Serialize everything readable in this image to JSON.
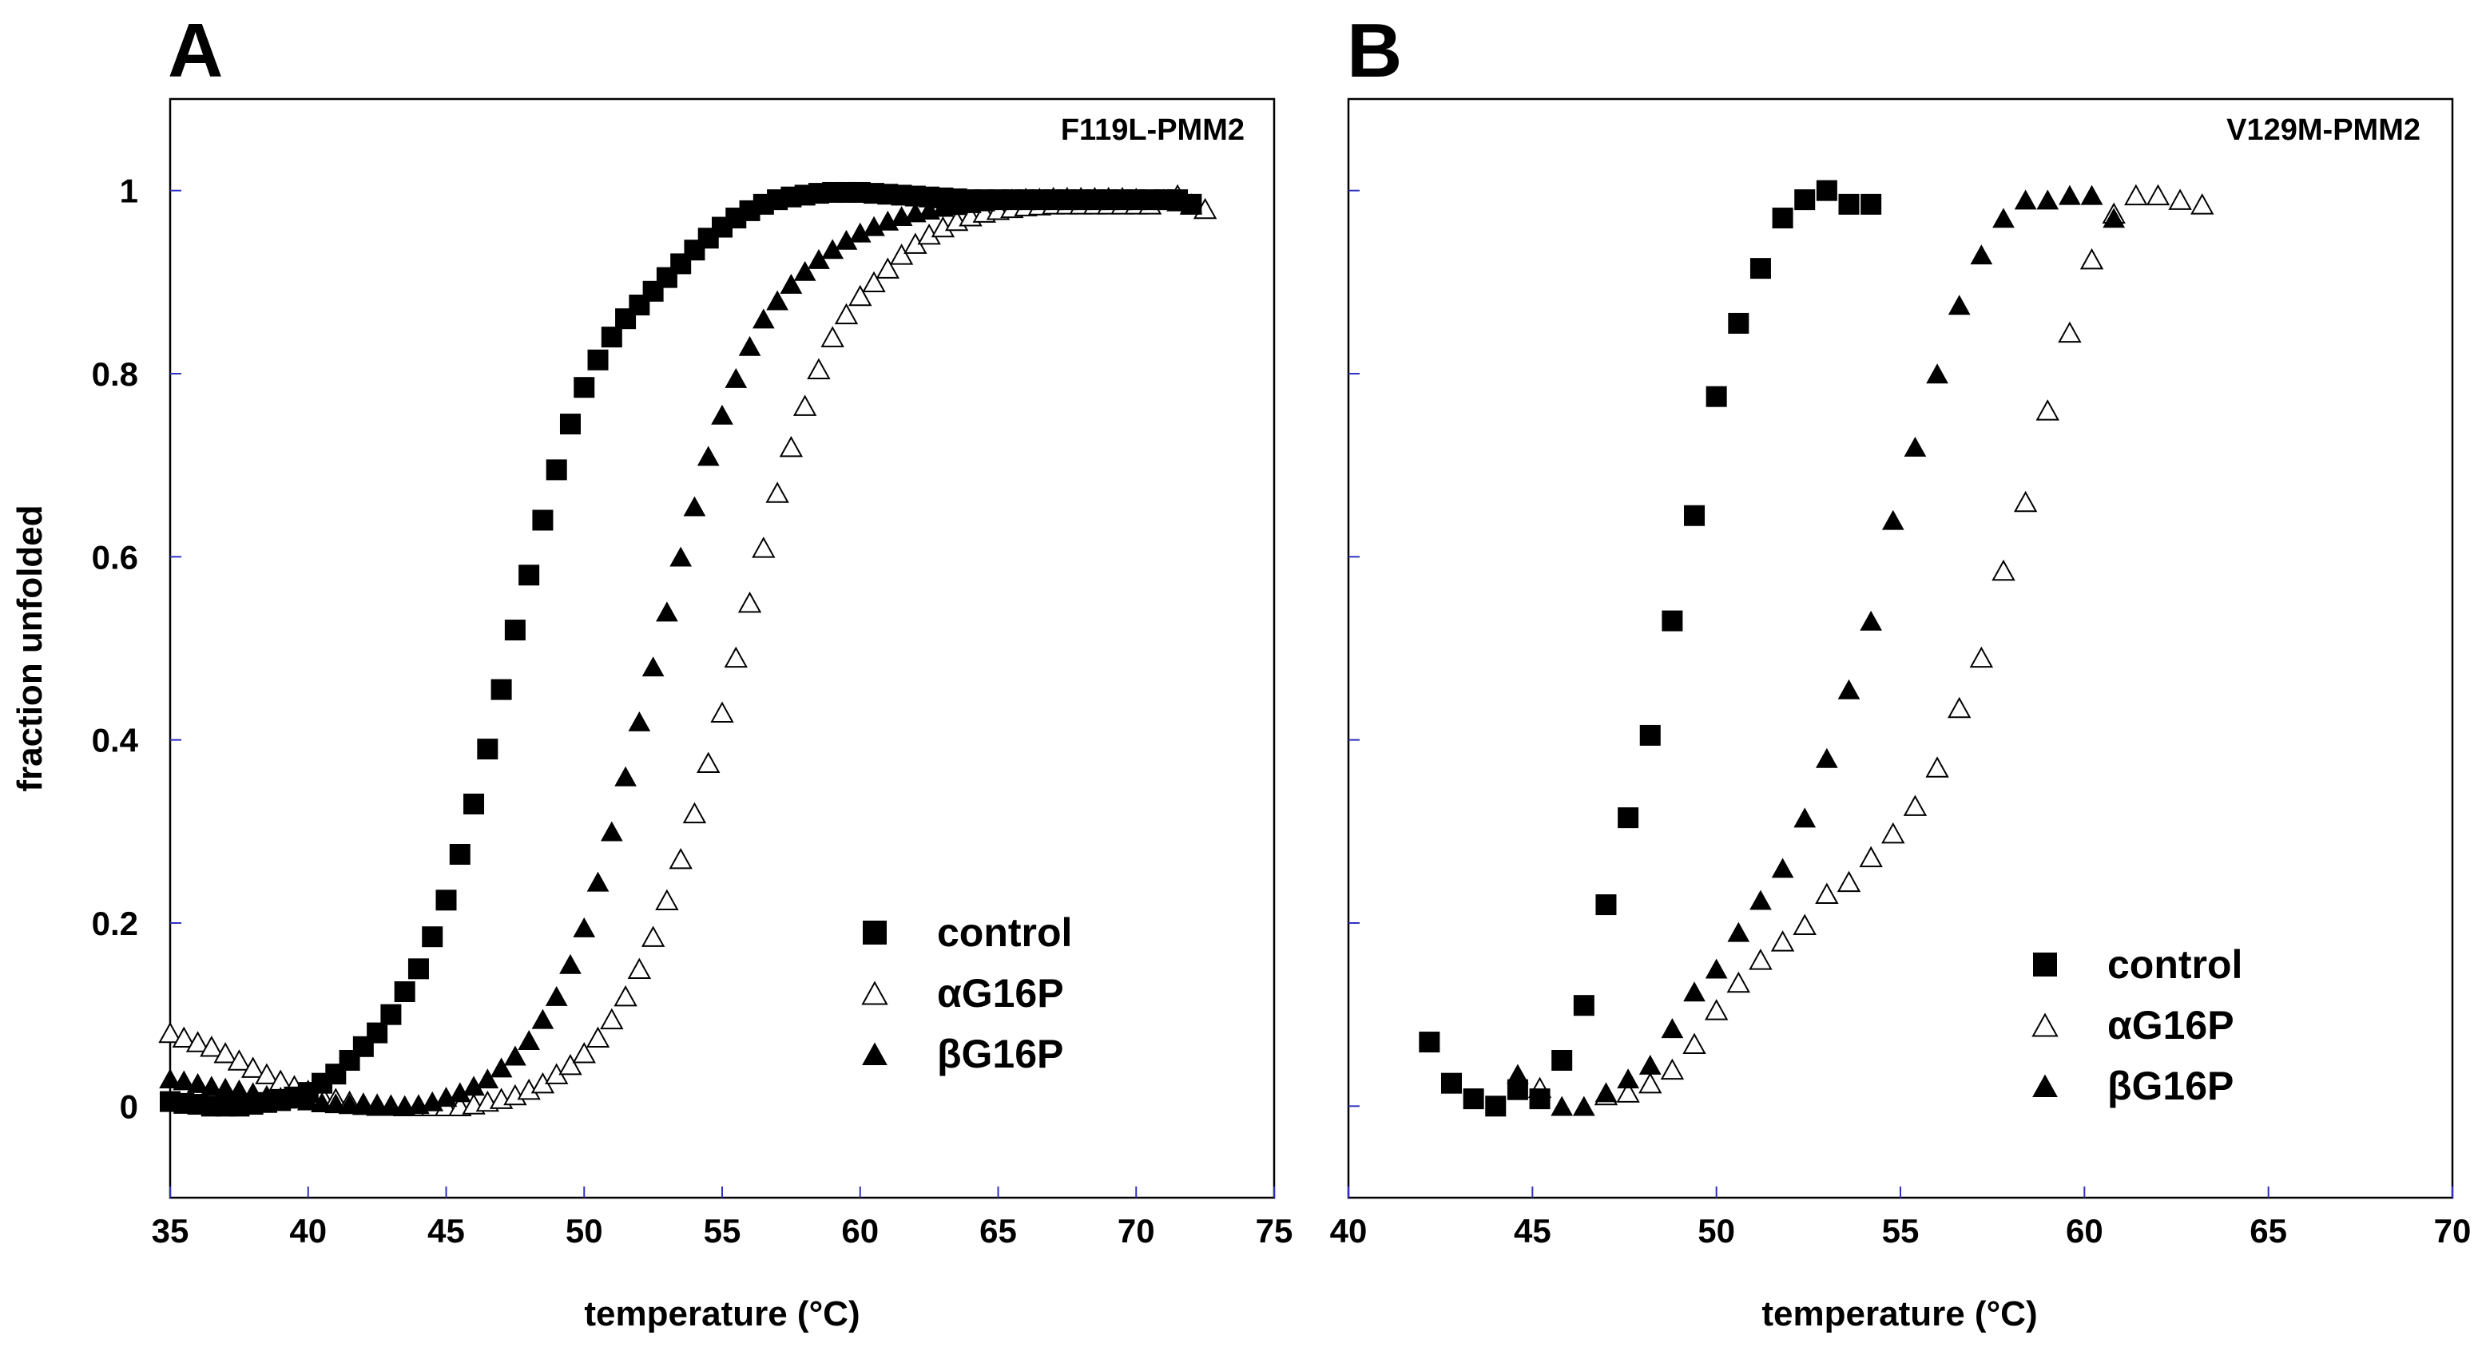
{
  "chart_data": [
    {
      "type": "scatter",
      "panel": "A",
      "title": "F119L-PMM2",
      "xlabel": "temperature (°C)",
      "ylabel": "fraction unfolded",
      "xlim": [
        35,
        75
      ],
      "ylim": [
        -0.1,
        1.1
      ],
      "xticks": [
        35,
        40,
        45,
        50,
        55,
        60,
        65,
        70,
        75
      ],
      "yticks": [
        0,
        0.2,
        0.4,
        0.6,
        0.8,
        1
      ],
      "ytick_labels": [
        "0",
        "0.2",
        "0.4",
        "0.6",
        "0.8",
        "1"
      ],
      "legend_position": "bottom-right",
      "grid": false,
      "series": [
        {
          "name": "control",
          "marker": "square-filled",
          "x": [
            35.0,
            35.5,
            36.0,
            36.5,
            37.0,
            37.5,
            38.0,
            38.5,
            39.0,
            39.5,
            40.0,
            40.5,
            41.0,
            41.5,
            42.0,
            42.5,
            43.0,
            43.5,
            44.0,
            44.5,
            45.0,
            45.5,
            46.0,
            46.5,
            47.0,
            47.5,
            48.0,
            48.5,
            49.0,
            49.5,
            50.0,
            50.5,
            51.0,
            51.5,
            52.0,
            52.5,
            53.0,
            53.5,
            54.0,
            54.5,
            55.0,
            55.5,
            56.0,
            56.5,
            57.0,
            57.5,
            58.0,
            58.5,
            59.0,
            59.5,
            60.0,
            60.5,
            61.0,
            61.5,
            62.0,
            62.5,
            63.0,
            63.5,
            64.0,
            64.5,
            65.0,
            65.5,
            66.0,
            66.5,
            67.0,
            67.5,
            68.0,
            68.5,
            69.0,
            69.5,
            70.0,
            70.5,
            71.0,
            71.5,
            72.0
          ],
          "y": [
            0.005,
            0.003,
            0.002,
            0.0,
            0.0,
            0.0,
            0.002,
            0.004,
            0.006,
            0.01,
            0.015,
            0.025,
            0.035,
            0.05,
            0.065,
            0.08,
            0.1,
            0.125,
            0.15,
            0.185,
            0.225,
            0.275,
            0.33,
            0.39,
            0.455,
            0.52,
            0.58,
            0.64,
            0.695,
            0.745,
            0.785,
            0.815,
            0.84,
            0.86,
            0.875,
            0.89,
            0.905,
            0.92,
            0.935,
            0.948,
            0.96,
            0.97,
            0.978,
            0.985,
            0.99,
            0.993,
            0.995,
            0.997,
            0.998,
            0.998,
            0.998,
            0.997,
            0.996,
            0.995,
            0.994,
            0.993,
            0.992,
            0.991,
            0.99,
            0.99,
            0.99,
            0.99,
            0.99,
            0.99,
            0.99,
            0.99,
            0.99,
            0.99,
            0.99,
            0.99,
            0.99,
            0.99,
            0.99,
            0.99,
            0.985
          ]
        },
        {
          "name": "αG16P",
          "marker": "triangle-open",
          "x": [
            35.0,
            35.5,
            36.0,
            36.5,
            37.0,
            37.5,
            38.0,
            38.5,
            39.0,
            39.5,
            40.0,
            40.5,
            41.0,
            41.5,
            42.0,
            42.5,
            43.0,
            43.5,
            44.0,
            44.5,
            45.0,
            45.5,
            46.0,
            46.5,
            47.0,
            47.5,
            48.0,
            48.5,
            49.0,
            49.5,
            50.0,
            50.5,
            51.0,
            51.5,
            52.0,
            52.5,
            53.0,
            53.5,
            54.0,
            54.5,
            55.0,
            55.5,
            56.0,
            56.5,
            57.0,
            57.5,
            58.0,
            58.5,
            59.0,
            59.5,
            60.0,
            60.5,
            61.0,
            61.5,
            62.0,
            62.5,
            63.0,
            63.5,
            64.0,
            64.5,
            65.0,
            65.5,
            66.0,
            66.5,
            67.0,
            67.5,
            68.0,
            68.5,
            69.0,
            69.5,
            70.0,
            70.5,
            71.0,
            71.5,
            72.0,
            72.5
          ],
          "y": [
            0.08,
            0.075,
            0.07,
            0.065,
            0.058,
            0.05,
            0.042,
            0.035,
            0.028,
            0.022,
            0.017,
            0.012,
            0.008,
            0.005,
            0.003,
            0.002,
            0.001,
            0.0,
            0.0,
            0.0,
            0.0,
            0.0,
            0.002,
            0.005,
            0.008,
            0.012,
            0.018,
            0.025,
            0.035,
            0.045,
            0.058,
            0.075,
            0.095,
            0.12,
            0.15,
            0.185,
            0.225,
            0.27,
            0.32,
            0.375,
            0.43,
            0.49,
            0.55,
            0.61,
            0.67,
            0.72,
            0.765,
            0.805,
            0.84,
            0.865,
            0.885,
            0.9,
            0.915,
            0.93,
            0.942,
            0.952,
            0.96,
            0.967,
            0.972,
            0.976,
            0.979,
            0.981,
            0.983,
            0.984,
            0.985,
            0.985,
            0.985,
            0.985,
            0.985,
            0.985,
            0.985,
            0.985,
            0.99,
            0.995,
            0.985,
            0.98
          ]
        },
        {
          "name": "βG16P",
          "marker": "triangle-filled",
          "x": [
            35.0,
            35.5,
            36.0,
            36.5,
            37.0,
            37.5,
            38.0,
            38.5,
            39.0,
            39.5,
            40.0,
            40.5,
            41.0,
            41.5,
            42.0,
            42.5,
            43.0,
            43.5,
            44.0,
            44.5,
            45.0,
            45.5,
            46.0,
            46.5,
            47.0,
            47.5,
            48.0,
            48.5,
            49.0,
            49.5,
            50.0,
            50.5,
            51.0,
            51.5,
            52.0,
            52.5,
            53.0,
            53.5,
            54.0,
            54.5,
            55.0,
            55.5,
            56.0,
            56.5,
            57.0,
            57.5,
            58.0,
            58.5,
            59.0,
            59.5,
            60.0,
            60.5,
            61.0,
            61.5,
            62.0,
            62.5,
            63.0,
            63.5,
            64.0,
            64.5,
            65.0,
            65.5,
            66.0,
            66.5,
            67.0,
            67.5,
            68.0,
            68.5,
            69.0,
            69.5,
            70.0,
            70.5,
            71.0,
            71.5,
            72.0
          ],
          "y": [
            0.03,
            0.028,
            0.025,
            0.022,
            0.02,
            0.018,
            0.015,
            0.012,
            0.01,
            0.008,
            0.006,
            0.004,
            0.003,
            0.002,
            0.001,
            0.0,
            0.0,
            0.0,
            0.002,
            0.005,
            0.01,
            0.015,
            0.022,
            0.03,
            0.042,
            0.055,
            0.072,
            0.095,
            0.12,
            0.155,
            0.195,
            0.245,
            0.3,
            0.36,
            0.42,
            0.48,
            0.54,
            0.6,
            0.655,
            0.71,
            0.755,
            0.795,
            0.83,
            0.86,
            0.88,
            0.898,
            0.912,
            0.925,
            0.936,
            0.946,
            0.954,
            0.961,
            0.967,
            0.972,
            0.976,
            0.979,
            0.982,
            0.984,
            0.986,
            0.988,
            0.99,
            0.991,
            0.992,
            0.992,
            0.993,
            0.993,
            0.993,
            0.993,
            0.993,
            0.993,
            0.992,
            0.99,
            0.99,
            0.988,
            0.985
          ]
        }
      ]
    },
    {
      "type": "scatter",
      "panel": "B",
      "title": "V129M-PMM2",
      "xlabel": "temperature (°C)",
      "ylabel": "",
      "xlim": [
        40,
        70
      ],
      "ylim": [
        -0.1,
        1.1
      ],
      "xticks": [
        40,
        45,
        50,
        55,
        60,
        65,
        70
      ],
      "yticks": [
        0,
        0.2,
        0.4,
        0.6,
        0.8,
        1
      ],
      "ytick_labels": [],
      "legend_position": "bottom-right",
      "grid": false,
      "series": [
        {
          "name": "control",
          "marker": "square-filled",
          "x": [
            42.2,
            42.8,
            43.4,
            44.0,
            44.6,
            45.2,
            45.8,
            46.4,
            47.0,
            47.6,
            48.2,
            48.8,
            49.4,
            50.0,
            50.6,
            51.2,
            51.8,
            52.4,
            53.0,
            53.6,
            54.2
          ],
          "y": [
            0.07,
            0.025,
            0.008,
            0.0,
            0.018,
            0.008,
            0.05,
            0.11,
            0.22,
            0.315,
            0.405,
            0.53,
            0.645,
            0.775,
            0.855,
            0.915,
            0.97,
            0.99,
            1.0,
            0.985,
            0.985
          ]
        },
        {
          "name": "αG16P",
          "marker": "triangle-open",
          "x": [
            45.2,
            47.0,
            47.6,
            48.2,
            48.8,
            49.4,
            50.0,
            50.6,
            51.2,
            51.8,
            52.4,
            53.0,
            53.6,
            54.2,
            54.8,
            55.4,
            56.0,
            56.6,
            57.2,
            57.8,
            58.4,
            59.0,
            59.6,
            60.2,
            60.8,
            61.4,
            62.0,
            62.6,
            63.2
          ],
          "y": [
            0.02,
            0.012,
            0.015,
            0.025,
            0.04,
            0.068,
            0.105,
            0.135,
            0.16,
            0.18,
            0.198,
            0.232,
            0.245,
            0.272,
            0.298,
            0.328,
            0.37,
            0.435,
            0.49,
            0.585,
            0.66,
            0.76,
            0.845,
            0.925,
            0.975,
            0.995,
            0.995,
            0.99,
            0.985
          ]
        },
        {
          "name": "βG16P",
          "marker": "triangle-filled",
          "x": [
            44.6,
            45.8,
            46.4,
            47.0,
            47.6,
            48.2,
            48.8,
            49.4,
            50.0,
            50.6,
            51.2,
            51.8,
            52.4,
            53.0,
            53.6,
            54.2,
            54.8,
            55.4,
            56.0,
            56.6,
            57.2,
            57.8,
            58.4,
            59.0,
            59.6,
            60.2,
            60.8
          ],
          "y": [
            0.035,
            0.0,
            0.0,
            0.015,
            0.03,
            0.045,
            0.085,
            0.125,
            0.15,
            0.19,
            0.225,
            0.26,
            0.315,
            0.38,
            0.455,
            0.53,
            0.64,
            0.72,
            0.8,
            0.875,
            0.93,
            0.97,
            0.99,
            0.99,
            0.995,
            0.995,
            0.97
          ]
        }
      ]
    }
  ]
}
